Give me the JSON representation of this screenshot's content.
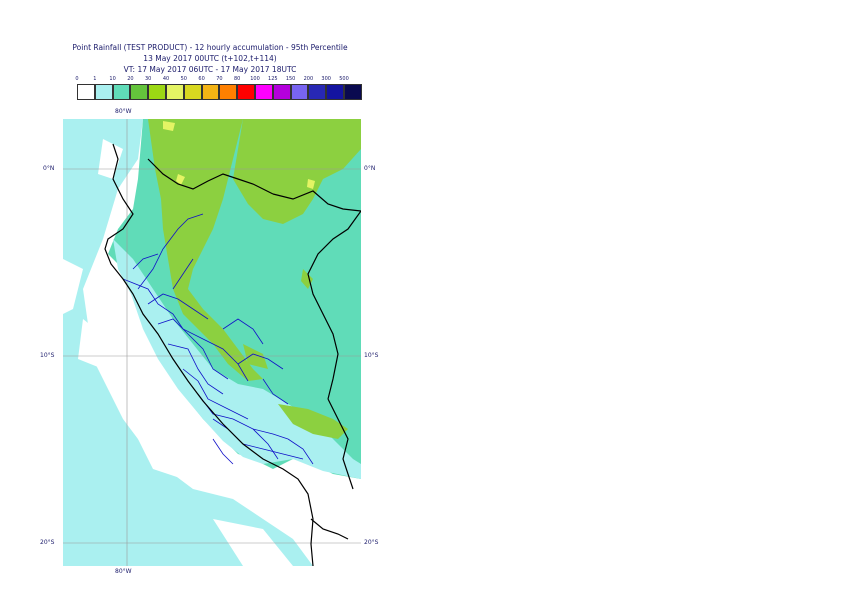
{
  "title": {
    "line1": "Point Rainfall (TEST PRODUCT) - 12 hourly accumulation - 95th Percentile",
    "line2": "13 May 2017 00UTC (t+102,t+114)",
    "line3": "VT: 17 May 2017 06UTC - 17 May 2017 18UTC"
  },
  "legend": {
    "thresholds": [
      "0",
      "1",
      "10",
      "20",
      "30",
      "40",
      "50",
      "60",
      "70",
      "80",
      "100",
      "125",
      "150",
      "200",
      "300",
      "500"
    ],
    "colors": [
      "#ffffff",
      "#aaf0f0",
      "#60dcb8",
      "#64c43c",
      "#9cd814",
      "#e4f464",
      "#d8d820",
      "#f4b414",
      "#ff8000",
      "#ff0000",
      "#ff00ff",
      "#b400dc",
      "#7864f0",
      "#2828b4",
      "#1414a0",
      "#0a0a50"
    ]
  },
  "axes": {
    "top_lon": "80°W",
    "bottom_lon": "80°W",
    "lat_labels": [
      "0°N",
      "10°S",
      "20°S"
    ]
  },
  "map_colors": {
    "ocean": "#ffffff",
    "light": "#aaf0f0",
    "teal": "#60dcb8",
    "green": "#8cd040",
    "yellow": "#e4f464",
    "coast": "#000000",
    "regions": "#1010c8",
    "grid": "#999999"
  }
}
